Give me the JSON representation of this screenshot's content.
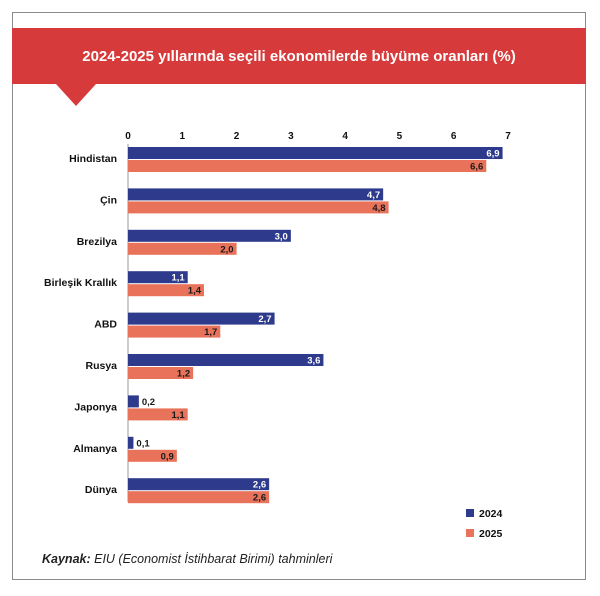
{
  "title": "2024-2025 yıllarında seçili ekonomilerde büyüme oranları (%)",
  "source_label": "Kaynak:",
  "source_text": "EIU (Economist İstihbarat Birimi) tahminleri",
  "colors": {
    "banner": "#d63a3a",
    "s2024": "#2e3a8c",
    "s2025": "#e8735a"
  },
  "chart_data": {
    "type": "bar",
    "orientation": "horizontal",
    "categories": [
      "Hindistan",
      "Çin",
      "Brezilya",
      "Birleşik Krallık",
      "ABD",
      "Rusya",
      "Japonya",
      "Almanya",
      "Dünya"
    ],
    "series": [
      {
        "name": "2024",
        "values": [
          6.9,
          4.7,
          3.0,
          1.1,
          2.7,
          3.6,
          0.2,
          0.1,
          2.6
        ],
        "labels": [
          "6,9",
          "4,7",
          "3,0",
          "1,1",
          "2,7",
          "3,6",
          "0,2",
          "0,1",
          "2,6"
        ]
      },
      {
        "name": "2025",
        "values": [
          6.6,
          4.8,
          2.0,
          1.4,
          1.7,
          1.2,
          1.1,
          0.9,
          2.6
        ],
        "labels": [
          "6,6",
          "4,8",
          "2,0",
          "1,4",
          "1,7",
          "1,2",
          "1,1",
          "0,9",
          "2,6"
        ]
      }
    ],
    "xlim": [
      0,
      7
    ],
    "ticks": [
      "0",
      "1",
      "2",
      "3",
      "4",
      "5",
      "6",
      "7"
    ],
    "grid": false,
    "legend_position": "bottom-right"
  }
}
